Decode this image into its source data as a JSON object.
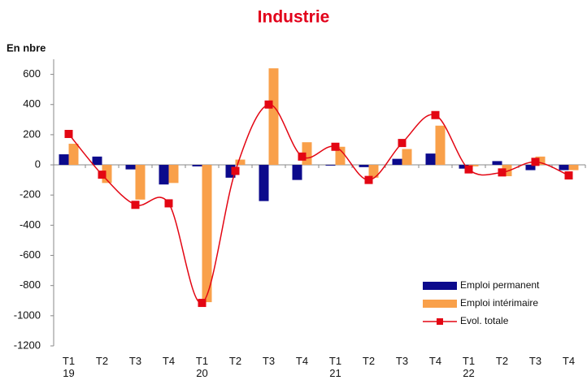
{
  "chart_data": {
    "type": "bar-line",
    "title": "Industrie",
    "y_label": "En nbre",
    "categories": [
      "T1 19",
      "T2",
      "T3",
      "T4",
      "T1 20",
      "T2",
      "T3",
      "T4",
      "T1 21",
      "T2",
      "T3",
      "T4",
      "T1 22",
      "T2",
      "T3",
      "T4"
    ],
    "series": [
      {
        "name": "Emploi permanent",
        "type": "bar",
        "color": "#0c0a8c",
        "values": [
          70,
          55,
          -30,
          -130,
          -10,
          -85,
          -240,
          -100,
          -5,
          -15,
          40,
          75,
          -25,
          25,
          -35,
          -35
        ]
      },
      {
        "name": "Emploi intérimaire",
        "type": "bar",
        "color": "#f9a04a",
        "values": [
          140,
          -120,
          -230,
          -120,
          -910,
          35,
          640,
          150,
          120,
          -85,
          105,
          260,
          -10,
          -75,
          55,
          -35
        ]
      },
      {
        "name": "Evol. totale",
        "type": "line",
        "color": "#e30613",
        "values": [
          205,
          -65,
          -265,
          -255,
          -915,
          -40,
          400,
          55,
          120,
          -100,
          145,
          330,
          -30,
          -50,
          20,
          -70
        ]
      }
    ],
    "ylim": [
      -1200,
      700
    ],
    "yticks": [
      -1200,
      -1000,
      -800,
      -600,
      -400,
      -200,
      0,
      200,
      400,
      600
    ]
  }
}
